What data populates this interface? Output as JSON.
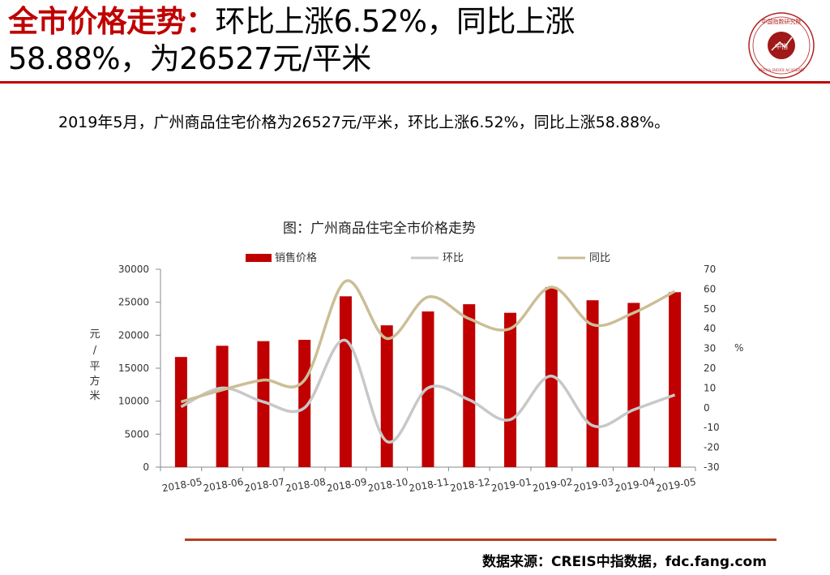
{
  "header": {
    "title_red": "全市价格走势：",
    "title_rest": "环比上涨6.52%，同比上涨",
    "title_line2": "58.88%，为26527元/平米"
  },
  "seal": {
    "text_top": "中国指数研究院",
    "text_center": "中指",
    "text_bottom": "CHINA INDEX ACADEMY"
  },
  "summary": "2019年5月，广州商品住宅价格为26527元/平米，环比上涨6.52%，同比上涨58.88%。",
  "source": "数据来源：CREIS中指数据，fdc.fang.com",
  "colors": {
    "accent": "#c00000",
    "bar": "#c00000",
    "mom": "#c8c8c8",
    "yoy": "#cbbe96",
    "rule": "#b2401e"
  },
  "chart_data": {
    "type": "bar",
    "title": "图：广州商品住宅全市价格走势",
    "categories": [
      "2018-05",
      "2018-06",
      "2018-07",
      "2018-08",
      "2018-09",
      "2018-10",
      "2018-11",
      "2018-12",
      "2019-01",
      "2019-02",
      "2019-03",
      "2019-04",
      "2019-05"
    ],
    "ylabel_left": "元/平方米",
    "ylabel_right": "%",
    "ylim_left": [
      0,
      30000
    ],
    "yticks_left": [
      "0",
      "5000",
      "10000",
      "15000",
      "20000",
      "25000",
      "30000"
    ],
    "ylim_right": [
      -30,
      70
    ],
    "yticks_right": [
      "-30",
      "-20",
      "-10",
      "0",
      "10",
      "20",
      "30",
      "40",
      "50",
      "60",
      "70"
    ],
    "legend_position": "top",
    "series": [
      {
        "name": "销售价格",
        "type": "bar",
        "axis": "left",
        "values": [
          16700,
          18400,
          19100,
          19300,
          25900,
          21500,
          23600,
          24700,
          23400,
          27300,
          25300,
          24900,
          26527
        ]
      },
      {
        "name": "环比",
        "type": "line",
        "axis": "right",
        "values": [
          0.5,
          10,
          3,
          0,
          34,
          -17,
          10,
          4,
          -6,
          16,
          -9,
          -1,
          6.52
        ]
      },
      {
        "name": "同比",
        "type": "line",
        "axis": "right",
        "values": [
          3,
          9,
          14,
          14,
          64,
          35,
          56,
          45,
          40,
          61,
          42,
          48,
          58.88
        ]
      }
    ]
  }
}
